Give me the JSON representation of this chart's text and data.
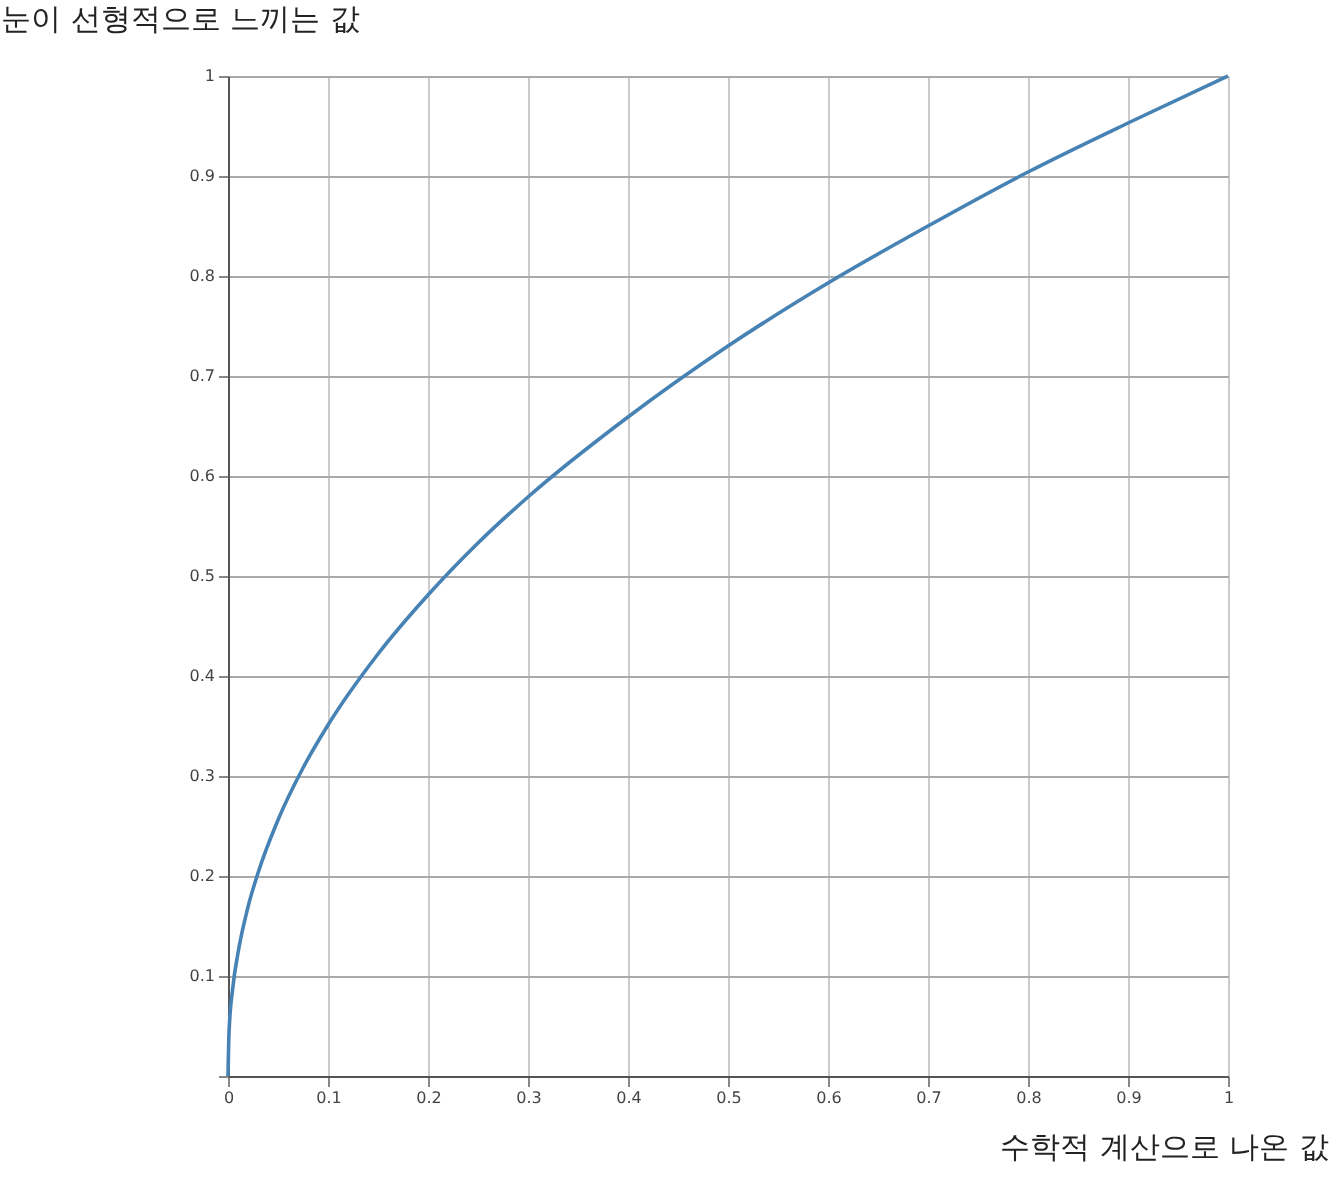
{
  "chart_data": {
    "type": "line",
    "xlabel": "수학적 계산으로 나온 값",
    "ylabel": "눈이 선형적으로 느끼는 값",
    "x": [
      0,
      0.001,
      0.005,
      0.01,
      0.02,
      0.03,
      0.05,
      0.075,
      0.1,
      0.15,
      0.2,
      0.25,
      0.3,
      0.4,
      0.5,
      0.6,
      0.7,
      0.8,
      0.9,
      1
    ],
    "series": [
      {
        "color": "#4682b4",
        "values": [
          0,
          0.043,
          0.09,
          0.123,
          0.169,
          0.203,
          0.256,
          0.308,
          0.351,
          0.422,
          0.481,
          0.533,
          0.579,
          0.659,
          0.73,
          0.793,
          0.85,
          0.904,
          0.953,
          1
        ]
      }
    ],
    "xlim": [
      0,
      1
    ],
    "ylim": [
      0,
      1
    ],
    "xticks": [
      0,
      0.1,
      0.2,
      0.3,
      0.4,
      0.5,
      0.6,
      0.7,
      0.8,
      0.9,
      1
    ],
    "yticks": [
      {
        "value": 0,
        "label": null
      },
      0.1,
      0.2,
      0.3,
      0.4,
      0.5,
      0.6,
      0.7,
      0.8,
      0.9,
      1
    ],
    "grid": true,
    "marker": "none",
    "line_style": "solid",
    "legend": false
  }
}
